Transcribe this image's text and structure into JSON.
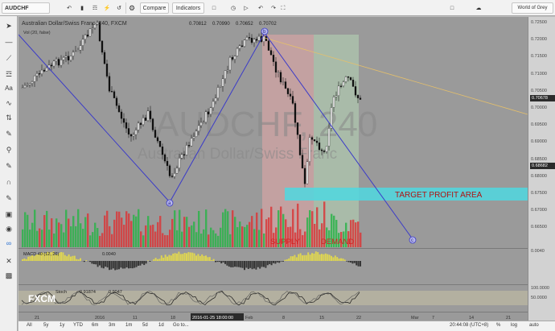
{
  "toolbar": {
    "symbol": "AUDCHF",
    "compare_label": "Compare",
    "indicators_label": "Indicators",
    "account_label": "World of Grey"
  },
  "legend": {
    "title": "Australian Dollar/Swiss Franc, 240, FXCM",
    "vol_label": "Vol (20, false)",
    "values": [
      "0.70812",
      "0.70990",
      "0.70652",
      "0.70702"
    ]
  },
  "watermark": {
    "big": "AUDCHF, 240",
    "small": "Australian Dollar/Swiss Franc"
  },
  "annotations": {
    "target": "TARGET PROFIT AREA",
    "supply": "SUPPLY",
    "demand": "DEMAND",
    "point_a": "a",
    "point_b": "b",
    "point_c": "c"
  },
  "macd": {
    "label": "MACD 40 (12, 26)",
    "value": "0.0040"
  },
  "osc": {
    "label": "Stoch",
    "values": [
      "0.91874",
      "0.9047"
    ]
  },
  "branding": {
    "logo": "FXCM"
  },
  "price_axis": {
    "labels": [
      "0.72500",
      "0.72000",
      "0.71500",
      "0.71000",
      "0.70500",
      "0.70000",
      "0.69500",
      "0.69000",
      "0.68500",
      "0.68000",
      "0.67500",
      "0.67000",
      "0.66500"
    ],
    "current": "0.70678",
    "marker": "0.68682",
    "macd_axis": "0.0040",
    "osc_axis": [
      "100.0000",
      "50.0000"
    ]
  },
  "time_axis": {
    "labels": [
      "21",
      "2016",
      "11",
      "18",
      "25",
      "Feb",
      "8",
      "15",
      "22",
      "Mar",
      "7",
      "14",
      "21"
    ],
    "cursor": "2016-01-25 18:00:00"
  },
  "range_bar": {
    "ranges": [
      "All",
      "5y",
      "1y",
      "YTD",
      "6m",
      "3m",
      "1m",
      "5d",
      "1d",
      "Go to..."
    ],
    "clock": "20:44:08 (UTC+8)",
    "scales": [
      "%",
      "log",
      "auto"
    ]
  },
  "colors": {
    "up": "#2db34a",
    "down": "#d8383a",
    "zigzag": "#3b3bc8",
    "target": "#4fd8e0",
    "supply_zone": "#e5a7a7",
    "demand_zone": "#b8dcb8",
    "target_text": "#b01212"
  }
}
